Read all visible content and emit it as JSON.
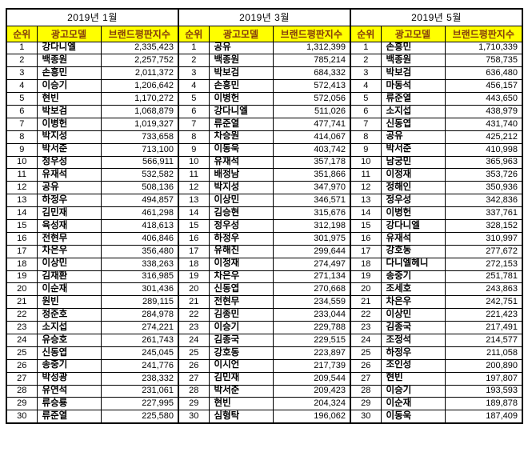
{
  "colors": {
    "header_bg": "#FFFF00",
    "header_text": "#843C0C",
    "border": "#000000",
    "body_text": "#000000",
    "page_bg": "#FFFFFF"
  },
  "table": {
    "columns": [
      "순위",
      "광고모델",
      "브랜드평판지수"
    ],
    "sections": [
      {
        "month": "2019년 1월",
        "rows": [
          [
            "1",
            "강다니엘",
            "2,335,423"
          ],
          [
            "2",
            "백종원",
            "2,257,752"
          ],
          [
            "3",
            "손흥민",
            "2,011,372"
          ],
          [
            "4",
            "이승기",
            "1,206,642"
          ],
          [
            "5",
            "현빈",
            "1,170,272"
          ],
          [
            "6",
            "박보검",
            "1,068,879"
          ],
          [
            "7",
            "이병헌",
            "1,019,327"
          ],
          [
            "8",
            "박지성",
            "733,658"
          ],
          [
            "9",
            "박서준",
            "713,100"
          ],
          [
            "10",
            "정우성",
            "566,911"
          ],
          [
            "11",
            "유재석",
            "532,582"
          ],
          [
            "12",
            "공유",
            "508,136"
          ],
          [
            "13",
            "하정우",
            "494,857"
          ],
          [
            "14",
            "김민재",
            "461,298"
          ],
          [
            "15",
            "육성재",
            "418,613"
          ],
          [
            "16",
            "전현무",
            "406,846"
          ],
          [
            "17",
            "차은우",
            "356,480"
          ],
          [
            "18",
            "이상민",
            "338,263"
          ],
          [
            "19",
            "김재환",
            "316,985"
          ],
          [
            "20",
            "이순재",
            "301,436"
          ],
          [
            "21",
            "원빈",
            "289,115"
          ],
          [
            "22",
            "정준호",
            "284,978"
          ],
          [
            "23",
            "소지섭",
            "274,221"
          ],
          [
            "24",
            "유승호",
            "261,743"
          ],
          [
            "25",
            "신동엽",
            "245,045"
          ],
          [
            "26",
            "송중기",
            "241,776"
          ],
          [
            "27",
            "박성광",
            "238,332"
          ],
          [
            "28",
            "유연석",
            "231,061"
          ],
          [
            "29",
            "류승룡",
            "227,995"
          ],
          [
            "30",
            "류준열",
            "225,580"
          ]
        ]
      },
      {
        "month": "2019년 3월",
        "rows": [
          [
            "1",
            "공유",
            "1,312,399"
          ],
          [
            "2",
            "백종원",
            "785,214"
          ],
          [
            "3",
            "박보검",
            "684,332"
          ],
          [
            "4",
            "손흥민",
            "572,413"
          ],
          [
            "5",
            "이병헌",
            "572,056"
          ],
          [
            "6",
            "강다니엘",
            "511,026"
          ],
          [
            "7",
            "류준열",
            "477,741"
          ],
          [
            "8",
            "차승원",
            "414,067"
          ],
          [
            "9",
            "이동욱",
            "403,742"
          ],
          [
            "10",
            "유재석",
            "357,178"
          ],
          [
            "11",
            "배정남",
            "351,866"
          ],
          [
            "12",
            "박지성",
            "347,970"
          ],
          [
            "13",
            "이상민",
            "346,571"
          ],
          [
            "14",
            "김승현",
            "315,676"
          ],
          [
            "15",
            "정우성",
            "312,198"
          ],
          [
            "16",
            "하정우",
            "301,975"
          ],
          [
            "17",
            "유해진",
            "299,644"
          ],
          [
            "18",
            "이정재",
            "274,497"
          ],
          [
            "19",
            "차은우",
            "271,134"
          ],
          [
            "20",
            "신동엽",
            "270,668"
          ],
          [
            "21",
            "전현무",
            "234,559"
          ],
          [
            "22",
            "김종민",
            "233,044"
          ],
          [
            "23",
            "이승기",
            "229,788"
          ],
          [
            "24",
            "김종국",
            "229,515"
          ],
          [
            "25",
            "강호동",
            "223,897"
          ],
          [
            "26",
            "이시언",
            "217,739"
          ],
          [
            "27",
            "김민재",
            "209,544"
          ],
          [
            "28",
            "박서준",
            "209,423"
          ],
          [
            "29",
            "현빈",
            "204,324"
          ],
          [
            "30",
            "심형탁",
            "196,062"
          ]
        ]
      },
      {
        "month": "2019년 5월",
        "rows": [
          [
            "1",
            "손흥민",
            "1,710,339"
          ],
          [
            "2",
            "백종원",
            "758,735"
          ],
          [
            "3",
            "박보검",
            "636,480"
          ],
          [
            "4",
            "마동석",
            "456,157"
          ],
          [
            "5",
            "류준열",
            "443,650"
          ],
          [
            "6",
            "소지섭",
            "438,979"
          ],
          [
            "7",
            "신동엽",
            "431,740"
          ],
          [
            "8",
            "공유",
            "425,212"
          ],
          [
            "9",
            "박서준",
            "410,998"
          ],
          [
            "10",
            "남궁민",
            "365,963"
          ],
          [
            "11",
            "이정재",
            "353,726"
          ],
          [
            "12",
            "정해인",
            "350,936"
          ],
          [
            "13",
            "정우성",
            "342,836"
          ],
          [
            "14",
            "이병헌",
            "337,761"
          ],
          [
            "15",
            "강다니엘",
            "328,152"
          ],
          [
            "16",
            "유재석",
            "310,997"
          ],
          [
            "17",
            "강호동",
            "277,672"
          ],
          [
            "18",
            "다니엘헤니",
            "272,153"
          ],
          [
            "19",
            "송중기",
            "251,781"
          ],
          [
            "20",
            "조세호",
            "243,863"
          ],
          [
            "21",
            "차은우",
            "242,751"
          ],
          [
            "22",
            "이상민",
            "221,423"
          ],
          [
            "23",
            "김종국",
            "217,491"
          ],
          [
            "24",
            "조정석",
            "214,577"
          ],
          [
            "25",
            "하정우",
            "211,058"
          ],
          [
            "26",
            "조인성",
            "200,890"
          ],
          [
            "27",
            "현빈",
            "197,807"
          ],
          [
            "28",
            "이승기",
            "193,593"
          ],
          [
            "29",
            "이순재",
            "189,878"
          ],
          [
            "30",
            "이동욱",
            "187,409"
          ]
        ]
      }
    ]
  }
}
